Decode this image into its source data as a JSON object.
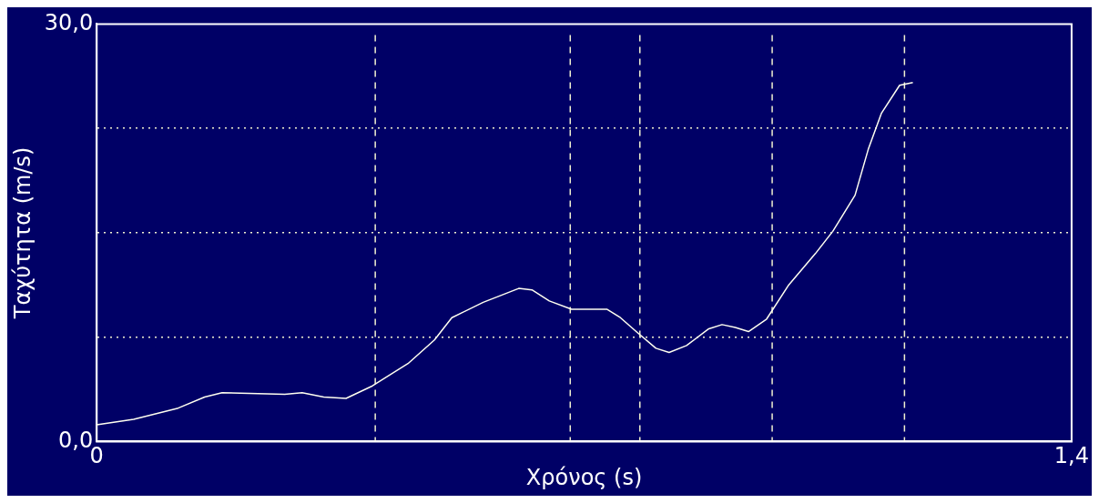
{
  "chart_data": {
    "type": "line",
    "xlabel": "Χρόνος (s)",
    "ylabel": "Ταχύτητα (m/s)",
    "xlim": [
      0,
      1.4
    ],
    "xticks": [
      0,
      {
        "value": 1.4,
        "label": "1,4"
      }
    ],
    "ylim": [
      0,
      30
    ],
    "yticks": [
      {
        "value": 0,
        "label": "0,0"
      },
      {
        "value": 7.5,
        "label": null
      },
      {
        "value": 15,
        "label": null
      },
      {
        "value": 22.5,
        "label": null
      },
      {
        "value": 30,
        "label": "30,0"
      }
    ],
    "grid": "y",
    "legend": false,
    "marker": "none",
    "line_style": "solid",
    "series": [
      {
        "color": "#fffff0",
        "x": [
          0,
          0.053,
          0.117,
          0.155,
          0.18,
          0.27,
          0.295,
          0.326,
          0.358,
          0.396,
          0.447,
          0.485,
          0.51,
          0.555,
          0.606,
          0.625,
          0.65,
          0.682,
          0.733,
          0.752,
          0.777,
          0.803,
          0.822,
          0.847,
          0.879,
          0.898,
          0.917,
          0.936,
          0.962,
          0.993,
          1.032,
          1.057,
          1.089,
          1.108,
          1.127,
          1.153,
          1.172
        ],
        "values": [
          1.2,
          1.6,
          2.4,
          3.2,
          3.5,
          3.4,
          3.5,
          3.2,
          3.1,
          4.0,
          5.6,
          7.3,
          8.9,
          10.0,
          11.0,
          10.9,
          10.1,
          9.5,
          9.5,
          8.9,
          7.8,
          6.7,
          6.4,
          6.9,
          8.1,
          8.4,
          8.2,
          7.9,
          8.8,
          11.2,
          13.5,
          15.1,
          17.7,
          21.0,
          23.6,
          25.6,
          25.8
        ]
      }
    ],
    "ref_lines": [
      {
        "axis": "x",
        "value": 0.4,
        "color": "#f0f0d0",
        "line_style": "dashed"
      },
      {
        "axis": "x",
        "value": 0.68,
        "color": "#f0f0d0",
        "line_style": "dashed"
      },
      {
        "axis": "x",
        "value": 0.78,
        "color": "#f0f0d0",
        "line_style": "dashed"
      },
      {
        "axis": "x",
        "value": 0.97,
        "color": "#f0f0d0",
        "line_style": "dashed"
      },
      {
        "axis": "x",
        "value": 1.16,
        "color": "#f0f0d0",
        "line_style": "dashed"
      }
    ]
  }
}
